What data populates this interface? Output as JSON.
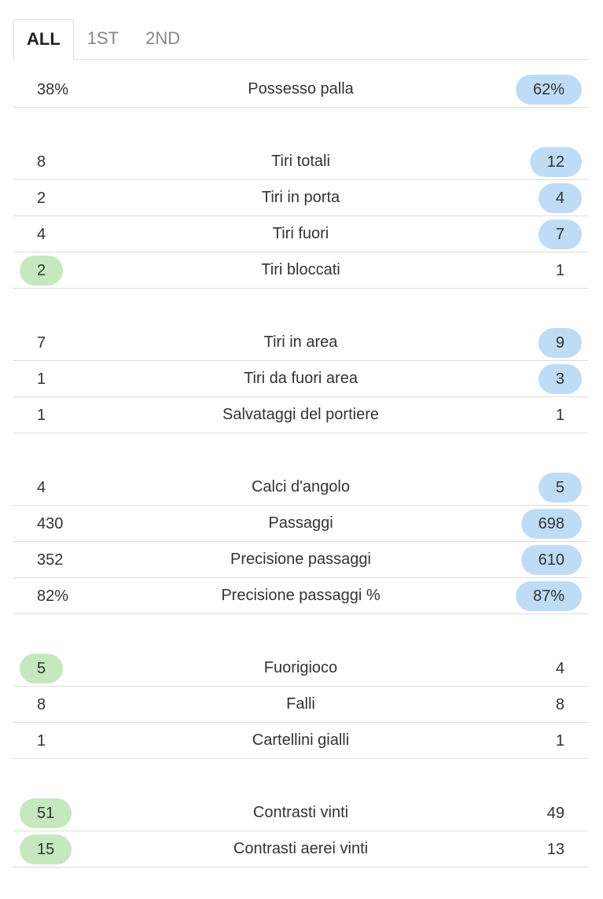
{
  "tabs": [
    {
      "label": "ALL",
      "active": true
    },
    {
      "label": "1ST",
      "active": false
    },
    {
      "label": "2ND",
      "active": false
    }
  ],
  "groups": [
    {
      "rows": [
        {
          "home": "38%",
          "label": "Possesso palla",
          "away": "62%",
          "highlight": "away"
        }
      ]
    },
    {
      "rows": [
        {
          "home": "8",
          "label": "Tiri totali",
          "away": "12",
          "highlight": "away"
        },
        {
          "home": "2",
          "label": "Tiri in porta",
          "away": "4",
          "highlight": "away"
        },
        {
          "home": "4",
          "label": "Tiri fuori",
          "away": "7",
          "highlight": "away"
        },
        {
          "home": "2",
          "label": "Tiri bloccati",
          "away": "1",
          "highlight": "home"
        }
      ]
    },
    {
      "rows": [
        {
          "home": "7",
          "label": "Tiri in area",
          "away": "9",
          "highlight": "away"
        },
        {
          "home": "1",
          "label": "Tiri da fuori area",
          "away": "3",
          "highlight": "away"
        },
        {
          "home": "1",
          "label": "Salvataggi del portiere",
          "away": "1",
          "highlight": null
        }
      ]
    },
    {
      "rows": [
        {
          "home": "4",
          "label": "Calci d'angolo",
          "away": "5",
          "highlight": "away"
        },
        {
          "home": "430",
          "label": "Passaggi",
          "away": "698",
          "highlight": "away"
        },
        {
          "home": "352",
          "label": "Precisione passaggi",
          "away": "610",
          "highlight": "away"
        },
        {
          "home": "82%",
          "label": "Precisione passaggi %",
          "away": "87%",
          "highlight": "away"
        }
      ]
    },
    {
      "rows": [
        {
          "home": "5",
          "label": "Fuorigioco",
          "away": "4",
          "highlight": "home"
        },
        {
          "home": "8",
          "label": "Falli",
          "away": "8",
          "highlight": null
        },
        {
          "home": "1",
          "label": "Cartellini gialli",
          "away": "1",
          "highlight": null
        }
      ]
    },
    {
      "rows": [
        {
          "home": "51",
          "label": "Contrasti vinti",
          "away": "49",
          "highlight": "home"
        },
        {
          "home": "15",
          "label": "Contrasti aerei vinti",
          "away": "13",
          "highlight": "home"
        }
      ]
    }
  ]
}
